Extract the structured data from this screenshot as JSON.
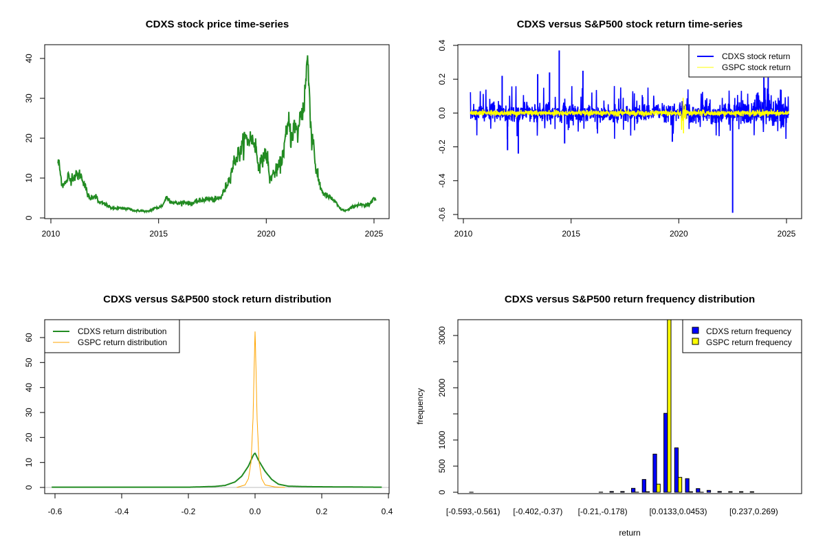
{
  "chart_data": [
    {
      "type": "line",
      "title": "CDXS stock price time-series",
      "xlabel": "",
      "ylabel": "",
      "xlim": [
        2010,
        2025.3
      ],
      "ylim": [
        0,
        42
      ],
      "x_ticks": [
        "2010",
        "2015",
        "2020",
        "2025"
      ],
      "y_ticks": [
        "0",
        "10",
        "20",
        "30",
        "40"
      ],
      "colors": {
        "price": "#228B22"
      },
      "series": [
        {
          "name": "CDXS price",
          "x": [
            2010.33,
            2010.4,
            2010.45,
            2010.55,
            2010.6,
            2010.7,
            2010.8,
            2010.9,
            2011.0,
            2011.2,
            2011.35,
            2011.5,
            2011.7,
            2011.8,
            2011.95,
            2012.1,
            2012.2,
            2012.5,
            2012.7,
            2012.9,
            2013.2,
            2013.6,
            2013.9,
            2014.2,
            2014.5,
            2014.8,
            2015.0,
            2015.2,
            2015.35,
            2015.6,
            2015.9,
            2016.2,
            2016.5,
            2016.8,
            2017.0,
            2017.3,
            2017.6,
            2017.9,
            2018.1,
            2018.3,
            2018.5,
            2018.7,
            2018.85,
            2019.0,
            2019.15,
            2019.3,
            2019.5,
            2019.6,
            2019.75,
            2019.9,
            2020.05,
            2020.15,
            2020.3,
            2020.5,
            2020.7,
            2020.9,
            2021.05,
            2021.15,
            2021.3,
            2021.45,
            2021.6,
            2021.75,
            2021.85,
            2021.9,
            2022.0,
            2022.1,
            2022.2,
            2022.3,
            2022.45,
            2022.6,
            2022.8,
            2023.0,
            2023.2,
            2023.4,
            2023.6,
            2023.8,
            2024.0,
            2024.2,
            2024.4,
            2024.6,
            2024.8,
            2024.95,
            2025.1
          ],
          "y": [
            14,
            13,
            10.5,
            8,
            9,
            8.5,
            10.5,
            9.5,
            10.5,
            10.5,
            11,
            9.5,
            6,
            4.8,
            5.5,
            5.5,
            4,
            3.5,
            2.8,
            2.4,
            2.4,
            2.3,
            1.8,
            1.8,
            1.6,
            2.4,
            2.6,
            3.2,
            5.2,
            4,
            3.6,
            4,
            3.5,
            4.2,
            4.5,
            4.8,
            4.5,
            5.2,
            7.5,
            10,
            14,
            16,
            17,
            20,
            19.5,
            20,
            18.5,
            14,
            13.5,
            16,
            15.5,
            9.5,
            11,
            12,
            14,
            20,
            24,
            20,
            23,
            21,
            26,
            28,
            36,
            40,
            32,
            20,
            19,
            12,
            9,
            6.5,
            5.5,
            5,
            4,
            2.5,
            1.8,
            2,
            2.8,
            3.2,
            3.3,
            3,
            3.5,
            5.2,
            4.4
          ]
        }
      ]
    },
    {
      "type": "line",
      "title": "CDXS versus S&P500 stock return time-series",
      "xlabel": "",
      "ylabel": "",
      "xlim": [
        2010,
        2025.3
      ],
      "ylim": [
        -0.6,
        0.4
      ],
      "x_ticks": [
        "2010",
        "2015",
        "2020",
        "2025"
      ],
      "y_ticks": [
        "-0.6",
        "-0.4",
        "-0.2",
        "0.0",
        "0.2",
        "0.4"
      ],
      "legend": {
        "position": "top-right",
        "entries": [
          "CDXS stock return",
          "GSPC stock return"
        ]
      },
      "colors": {
        "cdxs": "#0000FF",
        "gspc": "#FFFF00"
      },
      "series": [
        {
          "name": "CDXS stock return",
          "typical_range": [
            -0.08,
            0.08
          ],
          "notable_spikes": {
            "x": [
              2011.8,
              2012.05,
              2012.55,
              2013.45,
              2014.0,
              2014.45,
              2014.7,
              2015.55,
              2019.7,
              2022.5,
              2023.95,
              2024.15
            ],
            "y": [
              0.22,
              -0.22,
              -0.24,
              0.23,
              0.24,
              0.37,
              -0.18,
              0.25,
              -0.17,
              -0.59,
              0.21,
              0.21
            ]
          }
        },
        {
          "name": "GSPC stock return",
          "typical_range": [
            -0.02,
            0.02
          ],
          "notable_spikes": {
            "x": [
              2020.2,
              2020.22
            ],
            "y": [
              0.09,
              -0.12
            ]
          }
        }
      ]
    },
    {
      "type": "line",
      "title": "CDXS versus S&P500 stock return distribution",
      "xlabel": "",
      "ylabel": "",
      "xlim": [
        -0.63,
        0.4
      ],
      "ylim": [
        0,
        65
      ],
      "x_ticks": [
        "-0.6",
        "-0.4",
        "-0.2",
        "0.0",
        "0.2",
        "0.4"
      ],
      "y_ticks": [
        "0",
        "10",
        "20",
        "30",
        "40",
        "50",
        "60"
      ],
      "legend": {
        "position": "top-left",
        "entries": [
          "CDXS return distribution",
          "GSPC return distribution"
        ]
      },
      "colors": {
        "cdxs": "#228B22",
        "gspc": "#FFA500",
        "baseline": "#BEBEBE"
      },
      "series": [
        {
          "name": "CDXS return distribution",
          "x": [
            -0.61,
            -0.2,
            -0.12,
            -0.09,
            -0.06,
            -0.04,
            -0.02,
            -0.005,
            0.0,
            0.01,
            0.03,
            0.05,
            0.07,
            0.1,
            0.16,
            0.38
          ],
          "y": [
            0.1,
            0.1,
            0.4,
            0.8,
            2.2,
            4.5,
            8.5,
            13,
            13.8,
            11,
            6.5,
            3.2,
            1.3,
            0.5,
            0.3,
            0.1
          ]
        },
        {
          "name": "GSPC return distribution",
          "x": [
            -0.055,
            -0.03,
            -0.02,
            -0.012,
            -0.006,
            -0.002,
            0.0,
            0.002,
            0.006,
            0.012,
            0.02,
            0.03,
            0.06,
            0.09
          ],
          "y": [
            0,
            1,
            3.5,
            10,
            28,
            52,
            63,
            52,
            28,
            10,
            3.5,
            1,
            0.2,
            0
          ]
        }
      ]
    },
    {
      "type": "bar",
      "title": "CDXS versus S&P500 return frequency distribution",
      "xlabel": "return",
      "ylabel": "frequency",
      "ylim": [
        0,
        3300
      ],
      "y_ticks": [
        "0",
        "500",
        "1000",
        "",
        "2000",
        "",
        "3000"
      ],
      "y_tick_values": [
        0,
        500,
        1000,
        1500,
        2000,
        2500,
        3000
      ],
      "bin_labels_shown": [
        "[-0.593,-0.561)",
        "[-0.402,-0.37)",
        "[-0.21,-0.178)",
        "[0.0133,0.0453)",
        "[0.237,0.269)"
      ],
      "bin_label_indices": [
        0,
        6,
        12,
        19,
        26
      ],
      "legend": {
        "position": "top-right",
        "entries": [
          "CDXS return frequency",
          "GSPC return frequency"
        ]
      },
      "colors": {
        "cdxs": "#0000FF",
        "gspc": "#FFFF00"
      },
      "bin_count": 30,
      "series": [
        {
          "name": "CDXS return frequency",
          "values": [
            1,
            0,
            0,
            0,
            0,
            0,
            0,
            0,
            0,
            0,
            0,
            0,
            2,
            15,
            15,
            75,
            245,
            730,
            1510,
            850,
            260,
            70,
            35,
            15,
            12,
            12,
            10,
            0,
            0,
            0
          ]
        },
        {
          "name": "GSPC return frequency",
          "values": [
            0,
            0,
            0,
            0,
            0,
            0,
            0,
            0,
            0,
            0,
            0,
            0,
            0,
            0,
            0,
            2,
            10,
            155,
            3350,
            285,
            10,
            1,
            0,
            0,
            0,
            0,
            0,
            0,
            0,
            0
          ]
        }
      ]
    }
  ]
}
